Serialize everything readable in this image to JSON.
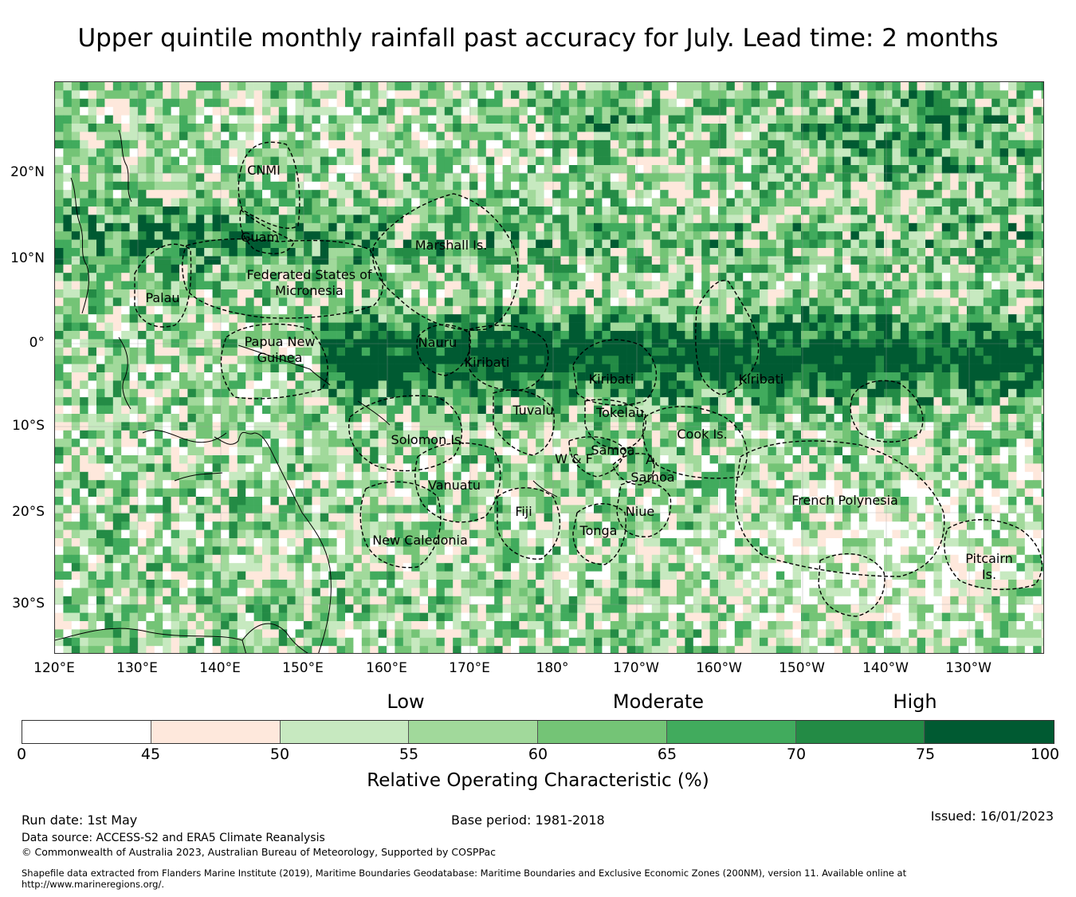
{
  "title": "Upper quintile monthly rainfall past accuracy for July. Lead time: 2 months",
  "map": {
    "lat_ticks": [
      "20°N",
      "10°N",
      "0°",
      "10°S",
      "20°S",
      "30°S"
    ],
    "lon_ticks": [
      "120°E",
      "130°E",
      "140°E",
      "150°E",
      "160°E",
      "170°E",
      "180°",
      "170°W",
      "160°W",
      "150°W",
      "140°W",
      "130°W"
    ],
    "regions": [
      "CNMI",
      "Guam",
      "Marshall Is.",
      "Federated States of Micronesia",
      "Palau",
      "Papua New Guinea",
      "Nauru",
      "Kiribati",
      "Kiribati",
      "Kiribati",
      "Tuvalu",
      "Tokelau",
      "Solomon Is.",
      "Cook Is.",
      "W & F",
      "Samoa",
      "A.",
      "Samoa",
      "Vanuatu",
      "French Polynesia",
      "Fiji",
      "Niue",
      "Tonga",
      "New Caledonia",
      "Pitcairn Is."
    ]
  },
  "legend": {
    "categories": [
      "Low",
      "Moderate",
      "High"
    ],
    "bins": [
      {
        "from": 0,
        "to": 45,
        "color": "#ffffff"
      },
      {
        "from": 45,
        "to": 50,
        "color": "#fee8dc"
      },
      {
        "from": 50,
        "to": 55,
        "color": "#c7e9c0"
      },
      {
        "from": 55,
        "to": 60,
        "color": "#a1d99b"
      },
      {
        "from": 60,
        "to": 65,
        "color": "#74c476"
      },
      {
        "from": 65,
        "to": 70,
        "color": "#41ab5d"
      },
      {
        "from": 70,
        "to": 75,
        "color": "#238b45"
      },
      {
        "from": 75,
        "to": 100,
        "color": "#005a32"
      }
    ],
    "tick_labels": [
      "0",
      "45",
      "50",
      "55",
      "60",
      "65",
      "70",
      "75",
      "100"
    ],
    "label": "Relative Operating Characteristic (%)"
  },
  "footer": {
    "run_date": "Run date: 1st May",
    "base_period": "Base period: 1981-2018",
    "issued": "Issued: 16/01/2023",
    "data_source": "Data source: ACCESS-S2 and ERA5 Climate Reanalysis",
    "copyright": "© Commonwealth of Australia 2023, Australian Bureau of Meteorology, Supported by COSPPac",
    "shapefile": "Shapefile data extracted from Flanders Marine Institute (2019), Maritime Boundaries Geodatabase: Maritime Boundaries and Exclusive Economic Zones (200NM), version 11. Available online at http://www.marineregions.org/."
  }
}
